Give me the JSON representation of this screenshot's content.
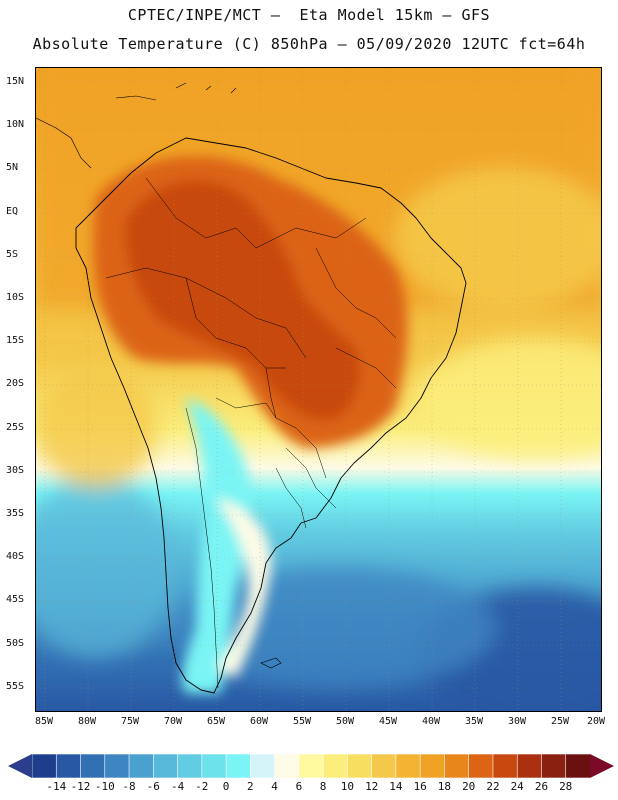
{
  "header": {
    "title_line1": "CPTEC/INPE/MCT –  Eta Model 15km – GFS",
    "title_line2": "Absolute Temperature (C) 850hPa – 05/09/2020 12UTC fct=64h"
  },
  "map": {
    "lat_labels": [
      "15N",
      "10N",
      "5N",
      "EQ",
      "5S",
      "10S",
      "15S",
      "20S",
      "25S",
      "30S",
      "35S",
      "40S",
      "45S",
      "50S",
      "55S"
    ],
    "lon_labels": [
      "85W",
      "80W",
      "75W",
      "70W",
      "65W",
      "60W",
      "55W",
      "50W",
      "45W",
      "40W",
      "35W",
      "30W",
      "25W",
      "20W"
    ],
    "region": "South America",
    "variable": "Absolute Temperature (C) 850hPa"
  },
  "colorbar": {
    "labels": [
      "-14",
      "-12",
      "-10",
      "-8",
      "-6",
      "-4",
      "-2",
      "0",
      "2",
      "4",
      "6",
      "8",
      "10",
      "12",
      "14",
      "16",
      "18",
      "20",
      "22",
      "24",
      "26",
      "28"
    ],
    "colors": [
      "#1c3e8c",
      "#2858a4",
      "#3270b4",
      "#3e86c2",
      "#4aa0ce",
      "#58b8da",
      "#62cce2",
      "#6ee2ea",
      "#7af4f4",
      "#d4f4fa",
      "#fdfbe6",
      "#fffaa0",
      "#fbee7c",
      "#f8de60",
      "#f4c84a",
      "#f2b432",
      "#f0a224",
      "#e8861c",
      "#dc6414",
      "#c84810",
      "#aa3010",
      "#8a2010",
      "#6a1010"
    ],
    "low_arrow_color": "#2a3e8c",
    "high_arrow_color": "#7a0a28"
  }
}
